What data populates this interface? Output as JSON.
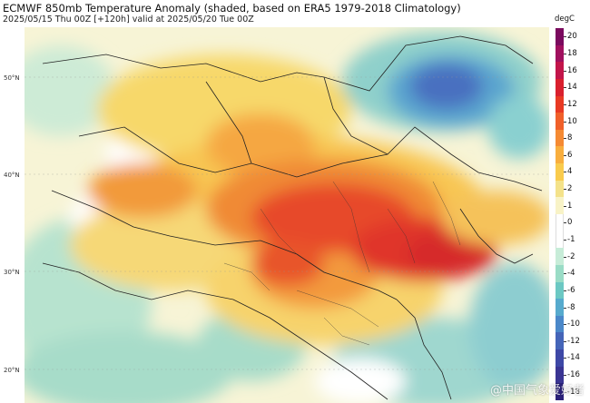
{
  "header": {
    "title": "ECMWF 850mb Temperature Anomaly (shaded, based on ERA5 1979-2018 Climatology)",
    "subtitle": "2025/05/15 Thu 00Z [+120h] valid at 2025/05/20 Tue 00Z"
  },
  "latitude_labels": [
    "50°N",
    "40°N",
    "30°N",
    "20°N"
  ],
  "colorbar": {
    "unit": "degC",
    "ticks": [
      "20",
      "18",
      "16",
      "14",
      "12",
      "10",
      "8",
      "6",
      "4",
      "2",
      "1",
      "0",
      "-1",
      "-2",
      "-4",
      "-6",
      "-8",
      "-10",
      "-12",
      "-14",
      "-16",
      "-18"
    ],
    "colors": [
      "#7a0a5e",
      "#a0105e",
      "#c2154a",
      "#d9202e",
      "#e83a24",
      "#f0602a",
      "#f58a33",
      "#f8ae3e",
      "#f9cb4d",
      "#f4e28a",
      "#f8f3c7",
      "#ffffff",
      "#ffffff",
      "#c7ecd8",
      "#9adcc6",
      "#6cc8c3",
      "#57aacd",
      "#4b88c9",
      "#4565b8",
      "#3e48a6",
      "#3a3593",
      "#2b227a"
    ]
  },
  "watermark": "@中国气象爱好者"
}
